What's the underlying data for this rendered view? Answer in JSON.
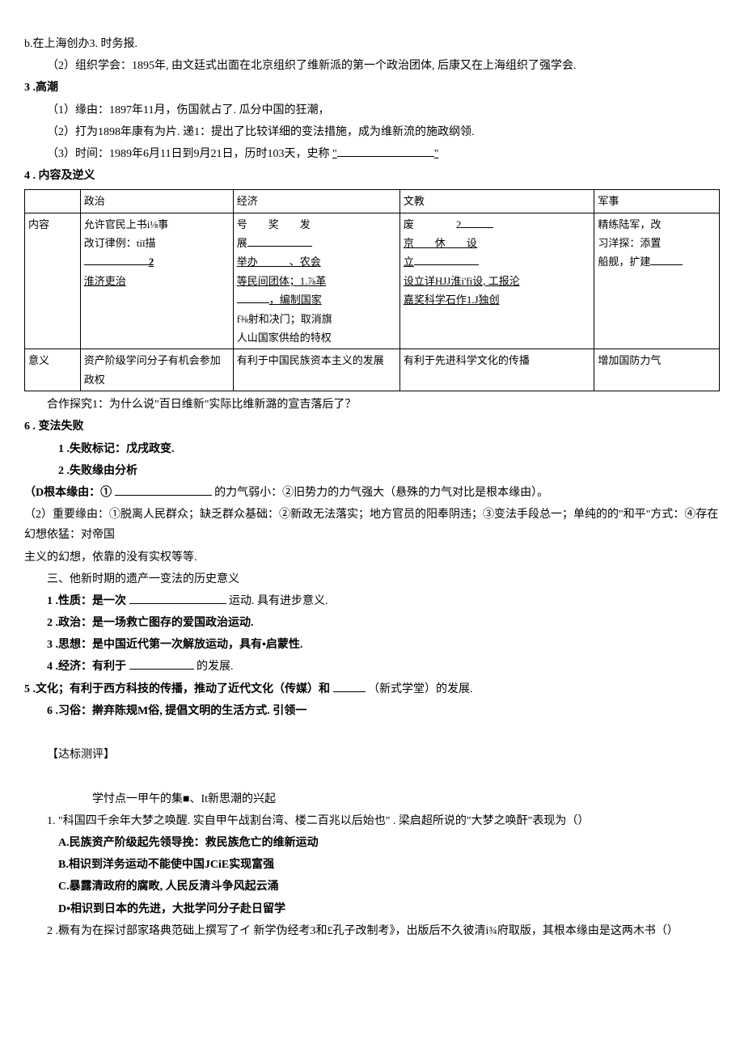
{
  "para": {
    "p1": "b.在上海创办3. 时务报.",
    "p2": "（2）组织学会：1895年, 由文廷式出面在北京组织了维新派的第一个政治团体, 后康又在上海组织了强学会.",
    "p3": "3 .高潮",
    "p4": "（1）缘由：1897年11月，伤国就占了. 瓜分中国的狂潮，",
    "p5": "（2）打为1898年康有为片. 递1：提出了比较详细的变法措施，成为维新流的施政纲领.",
    "p6_a": "（3）时间：1989年6月11日到9月21日，历时103天，史称",
    "p6_b": "\"",
    "p6_c": "\"",
    "p7": "4 . 内容及逆义"
  },
  "table": {
    "header": {
      "c1": "",
      "c2": "政治",
      "c3": "经济",
      "c4": "文教",
      "c5": "军事"
    },
    "row1": {
      "c1": "内容",
      "c2_a": "允许官民上书i⅛事",
      "c2_b": "改订律例：tiī描",
      "c2_c": "2",
      "c2_d": "淮济吏治",
      "c3_a": "号　　奖　　发",
      "c3_b": "展",
      "c3_c": "举办　　　、农会",
      "c3_d": "等民间团体；1.⅞革",
      "c3_e": "，编制国家",
      "c3_f": "f⅜射和决门；取消旗",
      "c3_g": "人山国家供给的特权",
      "c4_a": "废　　　　2",
      "c4_b": "京　　休　　设",
      "c4_c": "立",
      "c4_d": "设立详HJJ淮i'fi设, 工报沦",
      "c4_e": "嘉奖科学石作1.J独创",
      "c5_a": "精练陆军，改",
      "c5_b": "习洋探：添置",
      "c5_c": "船舰，扩建"
    },
    "row2": {
      "c1": "意义",
      "c2": "资产阶级学问分子有机会参加政权",
      "c3": "有利于中国民族资本主义的发展",
      "c4": "有利于先进科学文化的传播",
      "c5": "增加国防力气"
    }
  },
  "after": {
    "a1": "合作探究1：为什么说\"百日维新\"实际比维新潞的宣吉落后了？",
    "a2": "6 . 变法失败",
    "a3": "1 .失败标记：戊戌政变.",
    "a4": "2 .失败缘由分析",
    "a5_a": "（D根本缘由：①",
    "a5_b": "的力气弱小：②旧势力的力气强大（悬殊的力气对比是根本缘由）。",
    "a6": "（2）重要缘由：①脱离人民群众；缺乏群众基础：②新政无法落实；地方官员的阳奉阴违；③变法手段总一；单纯的的\"和平\"方式：④存在幻想依猛：对帝国",
    "a7": "主义的幻想，依靠的没有实权等等.",
    "a8": "三、他新时期的遗产一变法的历史意义",
    "a9_a": "1 .性质：是一次",
    "a9_b": "运动. 具有进步意义.",
    "a10": "2 .政治：是一场救亡图存的爱国政治运动.",
    "a11": "3 .思想：是中国近代第一次解放运动，具有•启蒙性.",
    "a12_a": "4 .经济：有利于",
    "a12_b": "的发展.",
    "a13_a": "5 .文化；有利于西方科技的传播，推动了近代文化（传媒）和",
    "a13_b": "（新式学堂）的发展.",
    "a14": "6 .习俗：擀弃陈规M俗, 提倡文明的生活方式. 引领一"
  },
  "exam": {
    "title": "【达标测评】",
    "sub": "学忖点一甲午的集■、It新思潮的兴起",
    "q1": "1. \"科国四千余年大梦之唤醒. 实自甲午战割台湾、楼二百兆以后始也\" . 梁启超所说的\"大梦之唤酐\"表现为（）",
    "q1a": "A.民族资产阶级起先领导挽：救民族危亡的维新运动",
    "q1b": "B.相识到洋务运动不能使中国JCiE实现富强",
    "q1c": "C.暴露清政府的腐畋, 人民反清斗争风起云涌",
    "q1d": "D•相识到日本的先进，大批学问分子赴日留学",
    "q2": "2 .橛有为在探讨部家珞典范础上撰写了イ 新学伪经考3和£孔子改制考》，出版后不久彼清i¾府取版，其根本缘由是这两木书（）"
  }
}
